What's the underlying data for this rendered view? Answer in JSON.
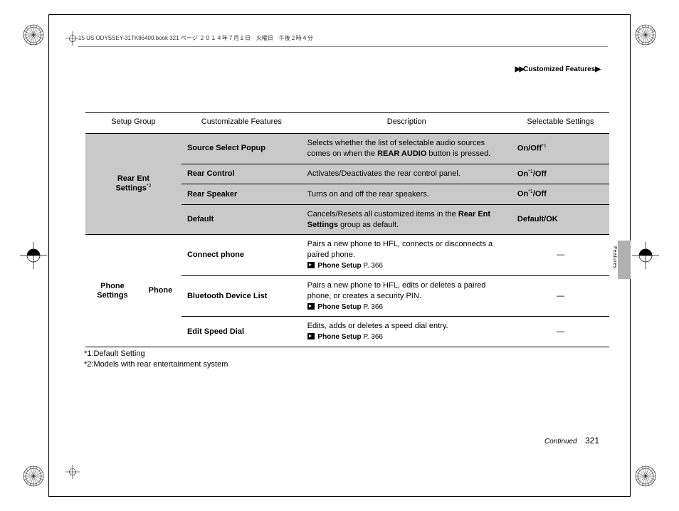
{
  "book_header": "15 US ODYSSEY-31TK86400.book  321 ページ  ２０１４年７月１日　火曜日　午後２時４分",
  "breadcrumb": {
    "arrows": "▶▶",
    "label": "Customized Features",
    "tail": "▶"
  },
  "side_tab": "Features",
  "columns": {
    "group": "Setup Group",
    "feature": "Customizable Features",
    "description": "Description",
    "settings": "Selectable Settings"
  },
  "groups": [
    {
      "name_line1": "Rear Ent",
      "name_line2": "Settings",
      "name_sup": "*2",
      "shaded": true,
      "rows": [
        {
          "feature": "Source Select Popup",
          "desc_pre": "Selects whether the list of selectable audio sources comes on when the ",
          "desc_bold": "REAR AUDIO",
          "desc_post": " button is pressed.",
          "settings_html": "On/Off",
          "settings_sup": "*1",
          "settings_sup_after_first": true
        },
        {
          "feature": "Rear Control",
          "desc_pre": "Activates/Deactivates the rear control panel.",
          "settings_a": "On",
          "settings_a_sup": "*1",
          "settings_b": "/Off"
        },
        {
          "feature": "Rear Speaker",
          "desc_pre": "Turns on and off the rear speakers.",
          "settings_a": "On",
          "settings_a_sup": "*1",
          "settings_b": "/Off"
        },
        {
          "feature": "Default",
          "desc_pre": "Cancels/Resets all customized items in the ",
          "desc_bold": "Rear Ent Settings",
          "desc_post": " group as default.",
          "settings_plain": "Default/OK"
        }
      ]
    },
    {
      "name_line1": "Phone",
      "name_line2": "Settings",
      "sub": "Phone",
      "rows": [
        {
          "feature": "Connect phone",
          "desc_pre": "Pairs a new phone to HFL, connects or disconnects a paired phone.",
          "ref_label": "Phone Setup",
          "ref_page": "P. 366",
          "settings_dash": "—"
        },
        {
          "feature": "Bluetooth Device List",
          "desc_pre": "Pairs a new phone to HFL, edits or deletes a paired phone, or creates a security PIN.",
          "ref_label": "Phone Setup",
          "ref_page": "P. 366",
          "settings_dash": "—"
        },
        {
          "feature": "Edit Speed Dial",
          "desc_pre": "Edits, adds or deletes a speed dial entry.",
          "ref_label": "Phone Setup",
          "ref_page": "P. 366",
          "settings_dash": "—"
        }
      ]
    }
  ],
  "footnotes": [
    "*1:Default Setting",
    "*2:Models with rear entertainment system"
  ],
  "footer": {
    "continued": "Continued",
    "page": "321"
  }
}
